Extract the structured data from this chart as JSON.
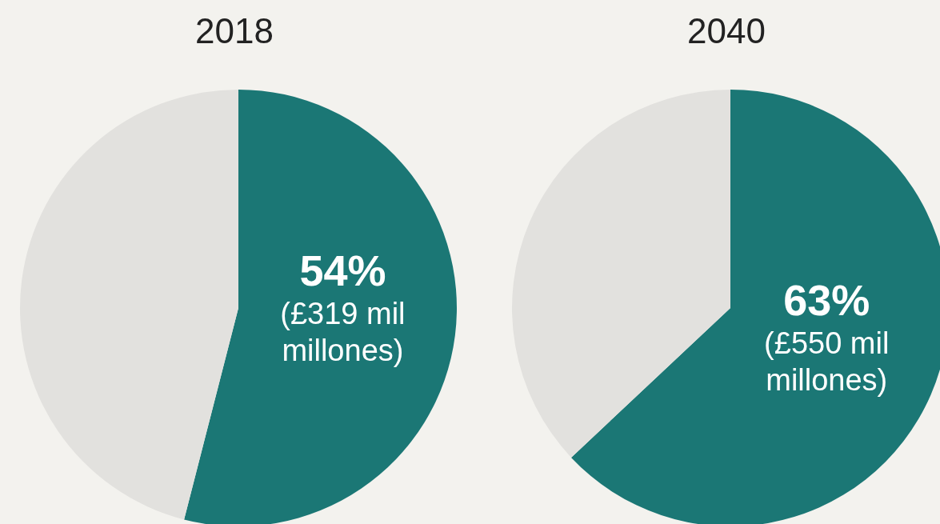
{
  "chart_data": [
    {
      "type": "pie",
      "title": "2018",
      "categories": [
        null,
        null
      ],
      "values": [
        54,
        46
      ],
      "colors": [
        "#1b7775",
        "#e2e1de"
      ],
      "value_labels": [
        "54%",
        null
      ],
      "annotations": [
        "(£319 mil millones)"
      ]
    },
    {
      "type": "pie",
      "title": "2040",
      "categories": [
        null,
        null
      ],
      "values": [
        63,
        37
      ],
      "colors": [
        "#1b7775",
        "#e2e1de"
      ],
      "value_labels": [
        "63%",
        null
      ],
      "annotations": [
        "(£550 mil millones)"
      ]
    }
  ]
}
